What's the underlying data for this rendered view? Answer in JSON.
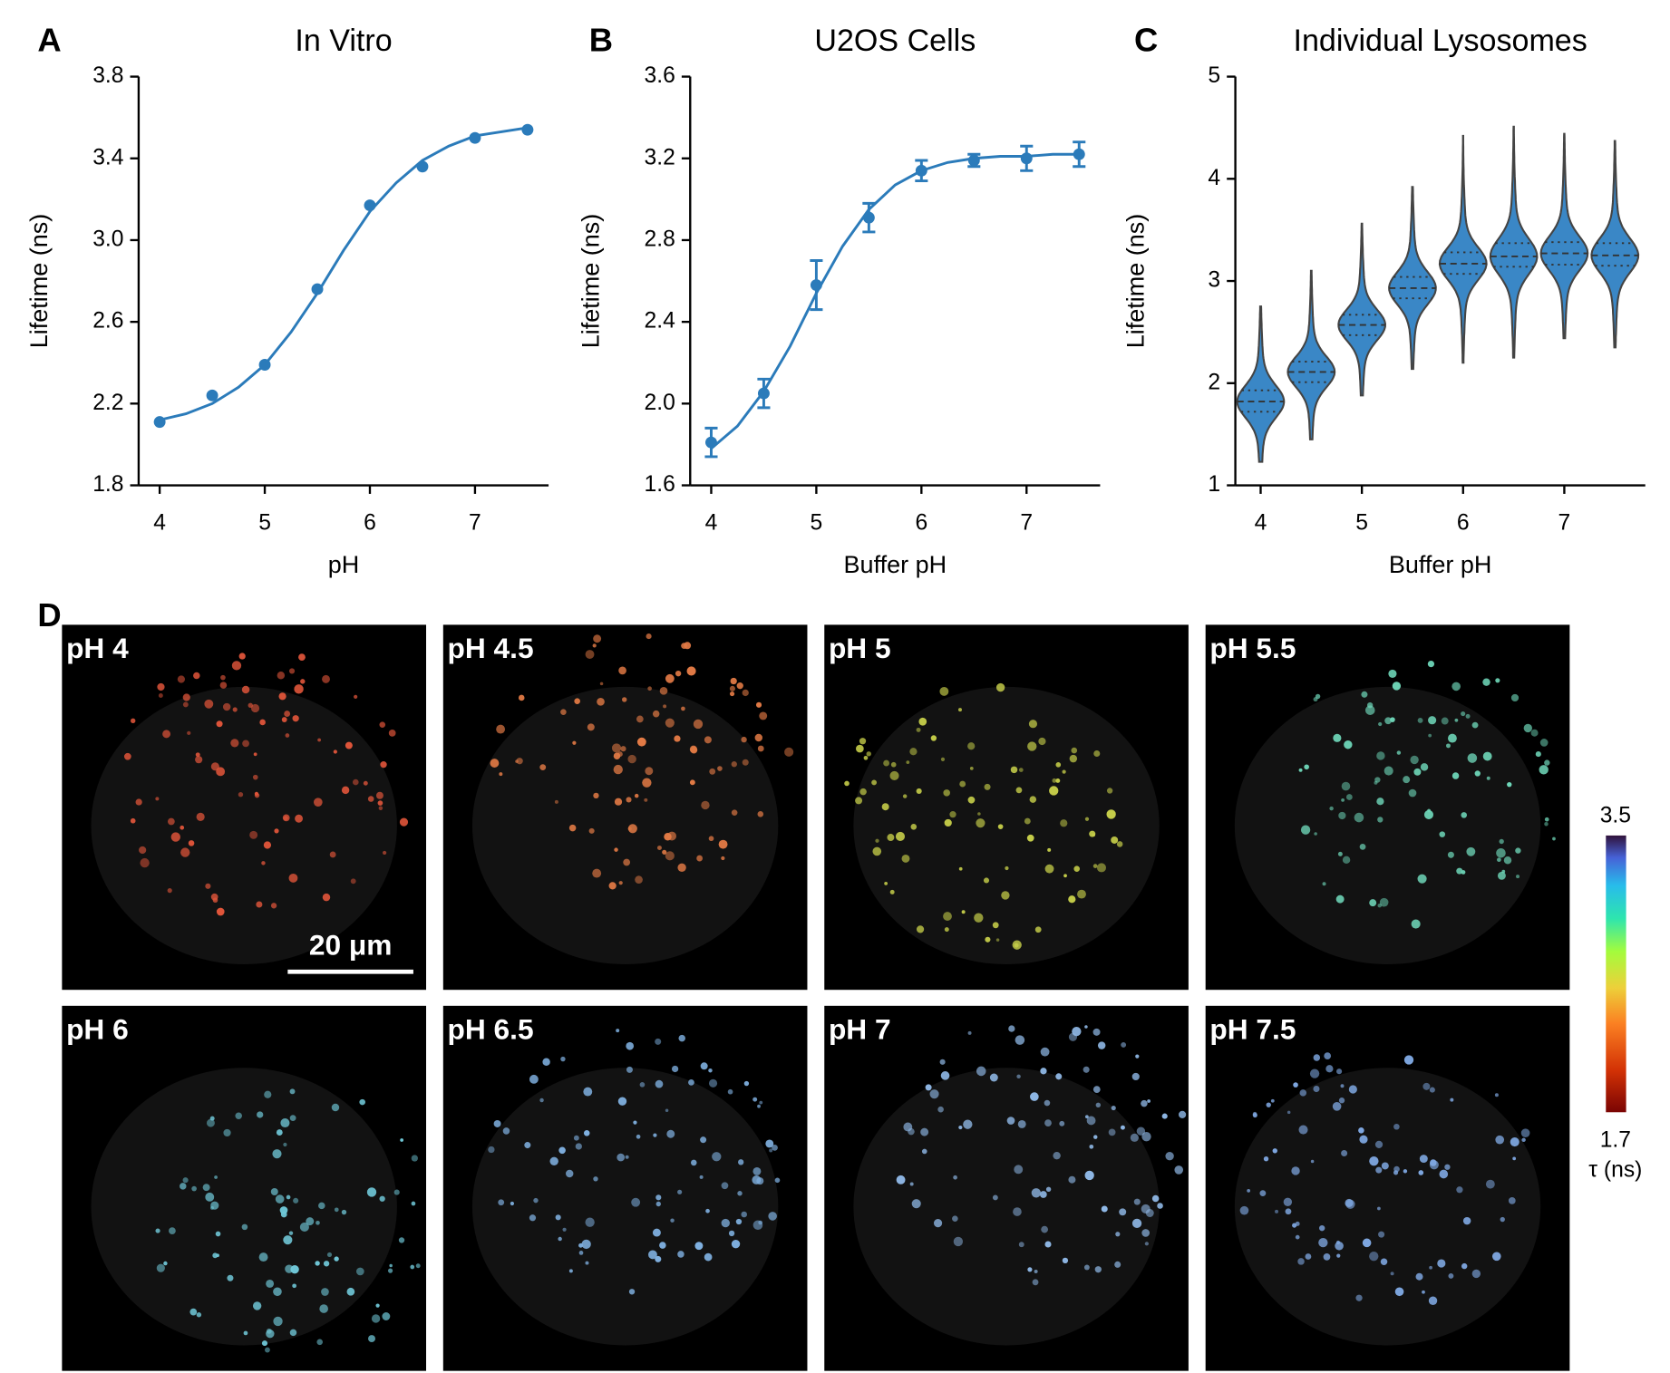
{
  "chart_data": [
    {
      "type": "line",
      "panel_label": "A",
      "title": "In Vitro",
      "x_label": "pH",
      "y_label": "Lifetime (ns)",
      "x": [
        4,
        4.5,
        5,
        5.5,
        6,
        6.5,
        7,
        7.5
      ],
      "values": [
        2.11,
        2.24,
        2.39,
        2.76,
        3.17,
        3.36,
        3.5,
        3.54
      ],
      "fit_x": [
        4,
        4.25,
        4.5,
        4.75,
        5,
        5.25,
        5.5,
        5.75,
        6,
        6.25,
        6.5,
        6.75,
        7,
        7.25,
        7.5
      ],
      "fit_values": [
        2.12,
        2.15,
        2.2,
        2.28,
        2.39,
        2.55,
        2.74,
        2.95,
        3.14,
        3.28,
        3.39,
        3.46,
        3.51,
        3.53,
        3.55
      ],
      "color": "#2b7bba",
      "xlim": [
        3.8,
        7.7
      ],
      "ylim": [
        1.8,
        3.8
      ],
      "xticks": [
        4,
        5,
        6,
        7
      ],
      "yticks": [
        1.8,
        2.2,
        2.6,
        {
          "value": 3,
          "label": "3.0"
        },
        3.4,
        3.8
      ]
    },
    {
      "type": "line",
      "panel_label": "B",
      "title": "U2OS Cells",
      "x_label": "Buffer pH",
      "y_label": "Lifetime (ns)",
      "x": [
        4,
        4.5,
        5,
        5.5,
        6,
        6.5,
        7,
        7.5
      ],
      "values": [
        1.81,
        2.05,
        2.58,
        2.91,
        3.14,
        3.19,
        3.2,
        3.22
      ],
      "errors": [
        0.07,
        0.07,
        0.12,
        0.07,
        0.05,
        0.03,
        0.06,
        0.06
      ],
      "fit_x": [
        4,
        4.25,
        4.5,
        4.75,
        5,
        5.25,
        5.5,
        5.75,
        6,
        6.25,
        6.5,
        6.75,
        7,
        7.25,
        7.5
      ],
      "fit_values": [
        1.78,
        1.89,
        2.06,
        2.28,
        2.54,
        2.77,
        2.95,
        3.07,
        3.14,
        3.18,
        3.2,
        3.21,
        3.21,
        3.22,
        3.22
      ],
      "color": "#2b7bba",
      "xlim": [
        3.8,
        7.7
      ],
      "ylim": [
        1.6,
        3.6
      ],
      "xticks": [
        4,
        5,
        6,
        7
      ],
      "yticks": [
        1.6,
        {
          "value": 2,
          "label": "2.0"
        },
        2.4,
        2.8,
        3.2,
        3.6
      ]
    },
    {
      "type": "violin",
      "panel_label": "C",
      "title": "Individual Lysosomes",
      "x_label": "Buffer pH",
      "y_label": "Lifetime (ns)",
      "x": [
        4,
        4.5,
        5,
        5.5,
        6,
        6.5,
        7,
        7.5
      ],
      "min": [
        1.23,
        1.45,
        1.88,
        2.14,
        2.2,
        2.25,
        2.44,
        2.35
      ],
      "q1": [
        1.72,
        2.01,
        2.47,
        2.83,
        3.07,
        3.14,
        3.16,
        3.15
      ],
      "median": [
        1.82,
        2.11,
        2.57,
        2.93,
        3.17,
        3.24,
        3.27,
        3.25
      ],
      "q3": [
        1.93,
        2.21,
        2.67,
        3.04,
        3.28,
        3.37,
        3.38,
        3.37
      ],
      "max": [
        2.75,
        3.1,
        3.56,
        3.92,
        4.42,
        4.51,
        4.44,
        4.37
      ],
      "color": "#3a87c6",
      "xlim": [
        3.75,
        7.8
      ],
      "ylim": [
        1,
        5
      ],
      "xticks": [
        4,
        5,
        6,
        7
      ],
      "yticks": [
        1,
        2,
        3,
        4,
        5
      ]
    }
  ],
  "panel_d": {
    "panel_label": "D",
    "images": [
      {
        "label": "pH 4"
      },
      {
        "label": "pH 4.5"
      },
      {
        "label": "pH 5"
      },
      {
        "label": "pH 5.5"
      },
      {
        "label": "pH 6"
      },
      {
        "label": "pH 6.5"
      },
      {
        "label": "pH 7"
      },
      {
        "label": "pH 7.5"
      }
    ],
    "scale_bar": "20 μm",
    "colorbar": {
      "lim": [
        1.7,
        3.5
      ],
      "ticks": [
        1.7,
        3.5
      ],
      "label": "τ (ns)"
    }
  }
}
